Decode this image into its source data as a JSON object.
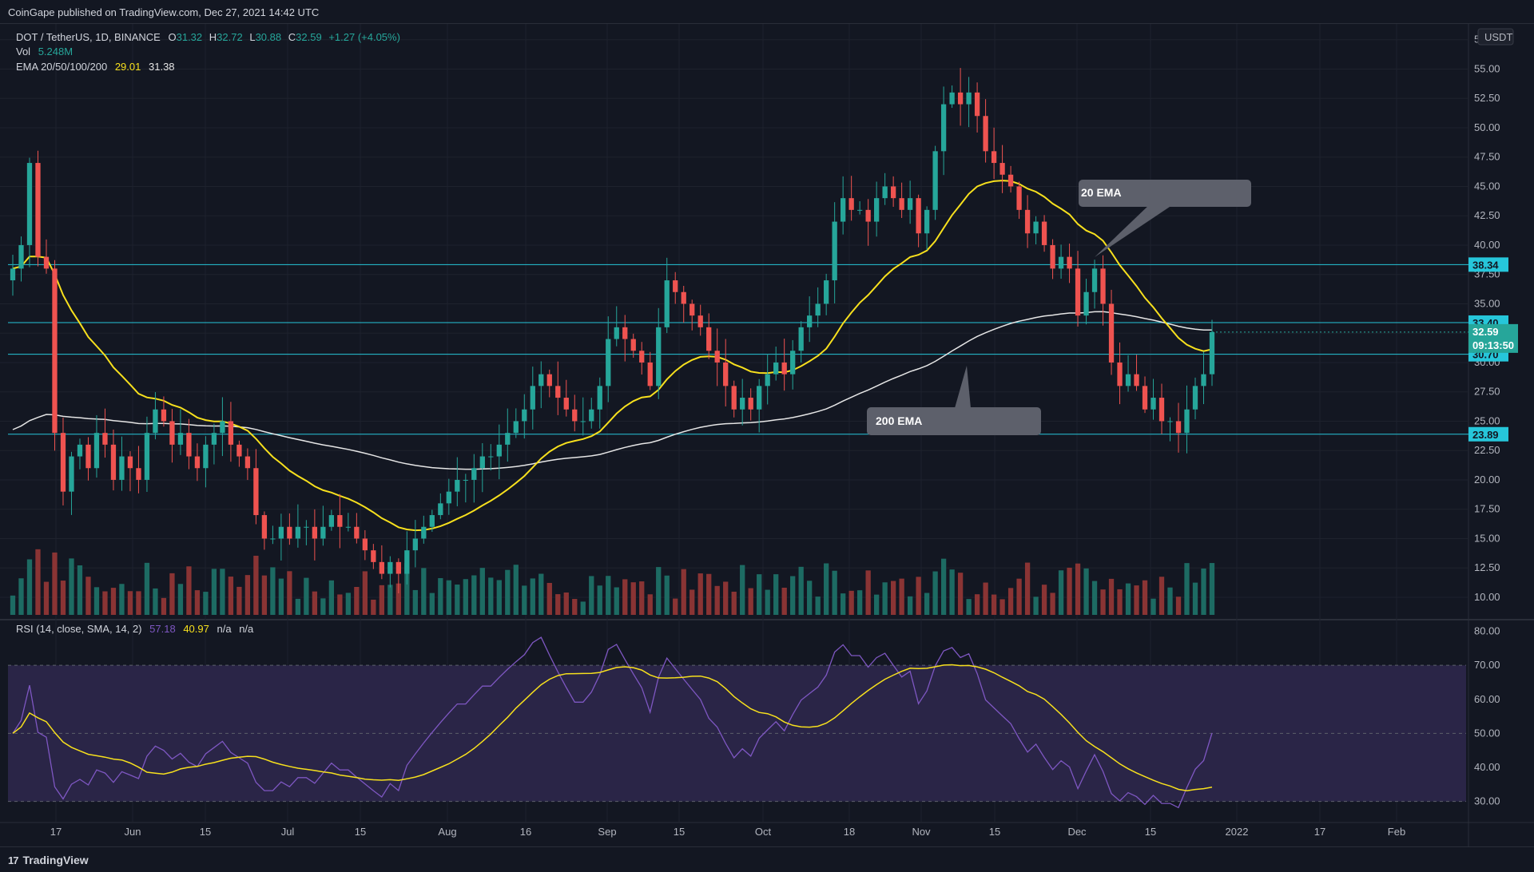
{
  "publisher_line": "CoinGape published on TradingView.com, Dec 27, 2021 14:42 UTC",
  "footer_brand": "TradingView",
  "footer_mark": "17",
  "legend": {
    "symbol": "DOT / TetherUS, 1D, BINANCE",
    "o_label": "O",
    "o_val": "31.32",
    "h_label": "H",
    "h_val": "32.72",
    "l_label": "L",
    "l_val": "30.88",
    "c_label": "C",
    "c_val": "32.59",
    "change": "+1.27 (+4.05%)",
    "vol_label": "Vol",
    "vol_val": "5.248M",
    "ema_label": "EMA 20/50/100/200",
    "ema20_val": "29.01",
    "ema200_val": "31.38",
    "rsi_label": "RSI (14, close, SMA, 14, 2)",
    "rsi_val": "57.18",
    "rsi_sma_val": "40.97",
    "rsi_na1": "n/a",
    "rsi_na2": "n/a"
  },
  "currency": "USDT",
  "colors": {
    "background": "#131722",
    "up": "#26a69a",
    "down": "#ef5350",
    "vol_up": "#1d6b63",
    "vol_down": "#8a3434",
    "ema20": "#f7e01d",
    "ema200": "#e6e6e6",
    "level": "#26c6da",
    "rsi": "#7e57c2",
    "rsi_sma": "#f7e01d",
    "rsi_band": "#2a2547",
    "grid": "#1e222d"
  },
  "callouts": [
    {
      "label": "20 EMA"
    },
    {
      "label": "200 EMA"
    }
  ],
  "chart_data": {
    "type": "candlestick",
    "price_axis": {
      "ylim": [
        8.5,
        58.5
      ],
      "ticks": [
        "10.00",
        "12.50",
        "15.00",
        "17.50",
        "20.00",
        "22.50",
        "25.00",
        "27.50",
        "30.00",
        "32.50",
        "35.00",
        "37.50",
        "40.00",
        "42.50",
        "45.00",
        "47.50",
        "50.00",
        "52.50",
        "55.00",
        "57.50"
      ]
    },
    "x_axis": {
      "ticks": [
        "17",
        "Jun",
        "15",
        "Jul",
        "15",
        "Aug",
        "16",
        "Sep",
        "15",
        "Oct",
        "18",
        "Nov",
        "15",
        "Dec",
        "15",
        "2022",
        "17",
        "Feb"
      ]
    },
    "horizontal_levels": [
      {
        "value": 38.34,
        "label": "38.34"
      },
      {
        "value": 33.4,
        "label": "33.40"
      },
      {
        "value": 30.7,
        "label": "30.70"
      },
      {
        "value": 23.89,
        "label": "23.89"
      }
    ],
    "last_price": {
      "value": 32.59,
      "label": "32.59",
      "countdown": "09:13:50"
    },
    "close_series": [
      38,
      40,
      47,
      39,
      38,
      24,
      19,
      22,
      23,
      21,
      24,
      23,
      20,
      22,
      21,
      20,
      24,
      26,
      25,
      23,
      24,
      22,
      21,
      23,
      24,
      25,
      23,
      22,
      21,
      17,
      15,
      15,
      16,
      15,
      16,
      16,
      15,
      16,
      17,
      16,
      16,
      15,
      14,
      13,
      12,
      13,
      12,
      14,
      15,
      16,
      17,
      18,
      19,
      20,
      20,
      21,
      22,
      22,
      23,
      24,
      25,
      26,
      28,
      29,
      28,
      27,
      26,
      25,
      25,
      26,
      28,
      32,
      33,
      32,
      31,
      30,
      28,
      33,
      37,
      36,
      35,
      34,
      33,
      31,
      30,
      28,
      26,
      27,
      26,
      28,
      29,
      30,
      29,
      31,
      33,
      34,
      35,
      37,
      42,
      44,
      43,
      43,
      42,
      44,
      45,
      44,
      43,
      44,
      41,
      43,
      48,
      52,
      53,
      52,
      53,
      51,
      48,
      47,
      46,
      45,
      43,
      41,
      42,
      40,
      38,
      39,
      38,
      34,
      36,
      38,
      35,
      30,
      28,
      29,
      28,
      26,
      27,
      25,
      25,
      24,
      26,
      28,
      29,
      32.59
    ],
    "rsi": {
      "ylim": [
        25,
        82
      ],
      "ticks": [
        "30.00",
        "40.00",
        "50.00",
        "60.00",
        "70.00",
        "80.00"
      ],
      "band": [
        30,
        70
      ],
      "midline": 50
    }
  }
}
